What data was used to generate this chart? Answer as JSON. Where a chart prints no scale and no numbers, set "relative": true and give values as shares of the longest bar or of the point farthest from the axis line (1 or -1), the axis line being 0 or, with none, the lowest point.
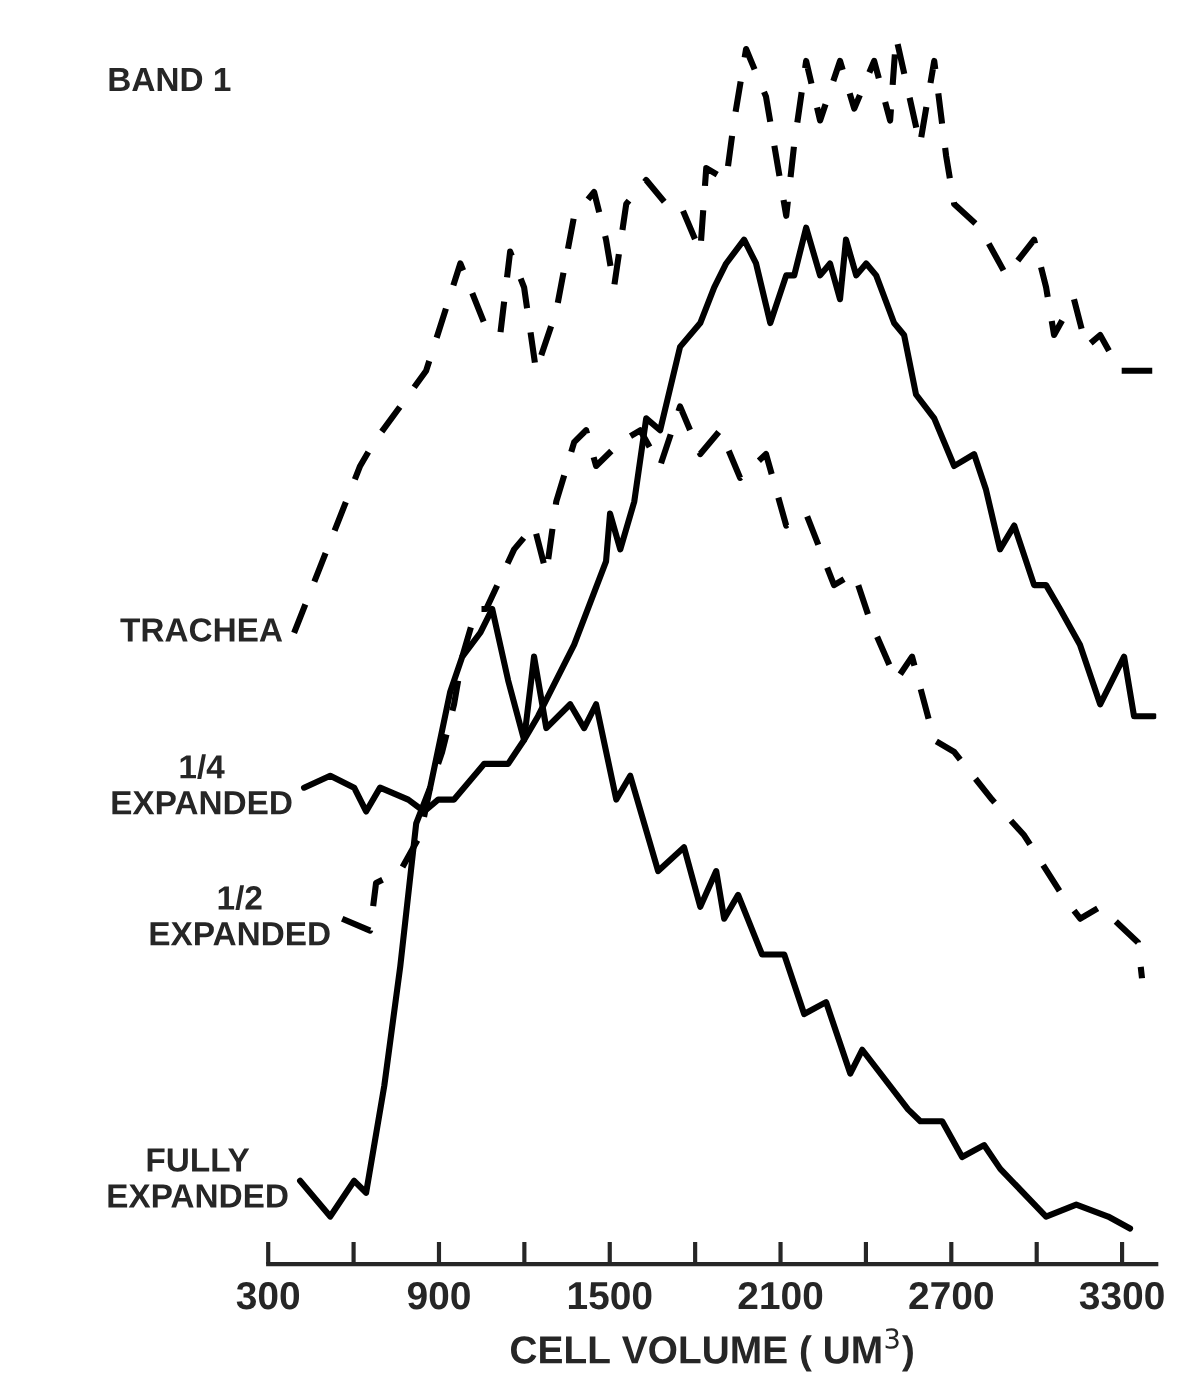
{
  "chart_data": {
    "type": "line",
    "title": "BAND 1",
    "xlabel": "CELL VOLUME ( UM$^{3}$)",
    "relative": true,
    "grid": false,
    "legend": false,
    "marker": "none",
    "xlim": [
      300,
      3420
    ],
    "xticks": [
      300,
      {
        "value": 600,
        "label": null
      },
      900,
      {
        "value": 1200,
        "label": null
      },
      1500,
      {
        "value": 1800,
        "label": null
      },
      2100,
      {
        "value": 2400,
        "label": null
      },
      2700,
      {
        "value": 3000,
        "label": null
      },
      3300
    ],
    "series": [
      {
        "name": "TRACHEA",
        "color": "#000000",
        "line_style": "dashed",
        "x": [
          391,
          623,
          672,
          764,
          855,
          975,
          1059,
          1115,
          1150,
          1199,
          1241,
          1312,
          1375,
          1445,
          1487,
          1515,
          1558,
          1628,
          1698,
          1747,
          1818,
          1839,
          1909,
          1937,
          1979,
          2049,
          2120,
          2148,
          2190,
          2239,
          2309,
          2359,
          2429,
          2485,
          2506,
          2590,
          2640,
          2682,
          2710,
          2801,
          2893,
          2991,
          3033,
          3061,
          3131,
          3174,
          3223,
          3293,
          3413
        ],
        "values": [
          0.5,
          0.64,
          0.66,
          0.69,
          0.72,
          0.81,
          0.76,
          0.75,
          0.82,
          0.79,
          0.72,
          0.77,
          0.85,
          0.87,
          0.83,
          0.79,
          0.86,
          0.88,
          0.86,
          0.86,
          0.82,
          0.89,
          0.88,
          0.93,
          0.99,
          0.95,
          0.85,
          0.91,
          0.98,
          0.93,
          0.98,
          0.94,
          0.98,
          0.93,
          1.0,
          0.91,
          0.98,
          0.9,
          0.86,
          0.84,
          0.8,
          0.83,
          0.79,
          0.75,
          0.78,
          0.74,
          0.75,
          0.72,
          0.72
        ]
      },
      {
        "name": "1/4\nEXPANDED",
        "color": "#000000",
        "line_style": "solid",
        "x": [
          426,
          518,
          602,
          644,
          693,
          792,
          848,
          897,
          953,
          1059,
          1143,
          1199,
          1248,
          1375,
          1487,
          1501,
          1537,
          1586,
          1628,
          1677,
          1747,
          1818,
          1867,
          1909,
          1972,
          2014,
          2064,
          2120,
          2148,
          2190,
          2239,
          2274,
          2309,
          2330,
          2366,
          2401,
          2436,
          2499,
          2534,
          2576,
          2640,
          2710,
          2780,
          2822,
          2871,
          2921,
          2991,
          3033,
          3082,
          3152,
          3223,
          3307,
          3342,
          3413
        ],
        "values": [
          0.37,
          0.38,
          0.37,
          0.35,
          0.37,
          0.36,
          0.35,
          0.36,
          0.36,
          0.39,
          0.39,
          0.41,
          0.43,
          0.49,
          0.56,
          0.6,
          0.57,
          0.61,
          0.68,
          0.67,
          0.74,
          0.76,
          0.79,
          0.81,
          0.83,
          0.81,
          0.76,
          0.8,
          0.8,
          0.84,
          0.8,
          0.81,
          0.78,
          0.83,
          0.8,
          0.81,
          0.8,
          0.76,
          0.75,
          0.7,
          0.68,
          0.64,
          0.65,
          0.62,
          0.57,
          0.59,
          0.54,
          0.54,
          0.52,
          0.49,
          0.44,
          0.48,
          0.43,
          0.43
        ]
      },
      {
        "name": "1/2\nEXPANDED",
        "color": "#000000",
        "line_style": "dashed",
        "x": [
          560,
          658,
          679,
          764,
          834,
          869,
          911,
          953,
          982,
          1031,
          1066,
          1164,
          1234,
          1277,
          1312,
          1375,
          1417,
          1452,
          1537,
          1607,
          1677,
          1747,
          1818,
          1888,
          1958,
          2049,
          2120,
          2190,
          2288,
          2359,
          2415,
          2506,
          2562,
          2640,
          2710,
          2843,
          2956,
          3089,
          3153,
          3223,
          3356,
          3370
        ],
        "values": [
          0.26,
          0.25,
          0.29,
          0.3,
          0.33,
          0.37,
          0.4,
          0.44,
          0.48,
          0.52,
          0.52,
          0.57,
          0.59,
          0.55,
          0.61,
          0.66,
          0.67,
          0.64,
          0.66,
          0.67,
          0.64,
          0.69,
          0.65,
          0.67,
          0.63,
          0.65,
          0.59,
          0.6,
          0.54,
          0.55,
          0.51,
          0.46,
          0.48,
          0.41,
          0.4,
          0.36,
          0.33,
          0.28,
          0.26,
          0.27,
          0.24,
          0.21
        ]
      },
      {
        "name": "FULLY\nEXPANDED",
        "color": "#000000",
        "line_style": "solid",
        "x": [
          412,
          518,
          602,
          644,
          708,
          764,
          820,
          869,
          939,
          982,
          1045,
          1087,
          1143,
          1199,
          1234,
          1277,
          1361,
          1410,
          1452,
          1523,
          1572,
          1670,
          1761,
          1818,
          1874,
          1902,
          1951,
          2035,
          2113,
          2183,
          2260,
          2345,
          2387,
          2548,
          2591,
          2668,
          2738,
          2815,
          2872,
          3033,
          3139,
          3251,
          3328
        ],
        "values": [
          0.04,
          0.01,
          0.04,
          0.03,
          0.12,
          0.22,
          0.34,
          0.37,
          0.45,
          0.48,
          0.5,
          0.52,
          0.46,
          0.41,
          0.48,
          0.42,
          0.44,
          0.42,
          0.44,
          0.36,
          0.38,
          0.3,
          0.32,
          0.27,
          0.3,
          0.26,
          0.28,
          0.23,
          0.23,
          0.18,
          0.19,
          0.13,
          0.15,
          0.1,
          0.09,
          0.09,
          0.06,
          0.07,
          0.05,
          0.01,
          0.02,
          0.01,
          0.0
        ]
      }
    ]
  }
}
